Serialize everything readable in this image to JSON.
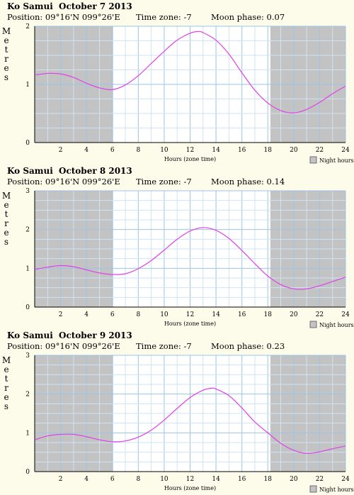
{
  "location": "Ko Samui",
  "night_label": "Night hours",
  "colors": {
    "background": "#fdfbe9",
    "night": "#c3c3c3",
    "grid_minor": "#cfe3f4",
    "grid_major": "#9ac4e8",
    "curve": "#e040e8",
    "axis": "#000000"
  },
  "chart_data": [
    {
      "type": "line",
      "title": "October 7 2013",
      "position": "Position: 09°16'N 099°26'E",
      "timezone": "Time zone: -7",
      "moon": "Moon phase: 0.07",
      "ylabel": "Metres",
      "xlabel": "Hours (zone time)",
      "xlim": [
        0,
        24
      ],
      "ylim": [
        0,
        2
      ],
      "xticks": [
        "2",
        "4",
        "6",
        "8",
        "10",
        "12",
        "14",
        "16",
        "18",
        "20",
        "22",
        "24"
      ],
      "yticks": [
        "0",
        "1",
        "2"
      ],
      "night": [
        [
          0,
          6.05
        ],
        [
          18.2,
          24
        ]
      ],
      "legend": "Night hours",
      "x": [
        0,
        1,
        2,
        3,
        4,
        5,
        6,
        7,
        8,
        9,
        10,
        11,
        12,
        12.6,
        13,
        14,
        15,
        16,
        17,
        18,
        19,
        20,
        21,
        22,
        23,
        24
      ],
      "y": [
        1.16,
        1.19,
        1.18,
        1.12,
        1.02,
        0.94,
        0.91,
        0.99,
        1.15,
        1.36,
        1.57,
        1.76,
        1.88,
        1.91,
        1.89,
        1.76,
        1.52,
        1.2,
        0.9,
        0.68,
        0.55,
        0.51,
        0.57,
        0.69,
        0.84,
        0.97
      ]
    },
    {
      "type": "line",
      "title": "October 8 2013",
      "position": "Position: 09°16'N 099°26'E",
      "timezone": "Time zone: -7",
      "moon": "Moon phase: 0.14",
      "ylabel": "Metres",
      "xlabel": "Hours (zone time)",
      "xlim": [
        0,
        24
      ],
      "ylim": [
        0,
        3
      ],
      "xticks": [
        "2",
        "4",
        "6",
        "8",
        "10",
        "12",
        "14",
        "16",
        "18",
        "20",
        "22",
        "24"
      ],
      "yticks": [
        "0",
        "1",
        "2",
        "3"
      ],
      "night": [
        [
          0,
          6.05
        ],
        [
          18.2,
          24
        ]
      ],
      "legend": "Night hours",
      "x": [
        0,
        1,
        2,
        3,
        4,
        5,
        6,
        7,
        8,
        9,
        10,
        11,
        12,
        13,
        14,
        15,
        16,
        17,
        18,
        19,
        20,
        21,
        22,
        23,
        24
      ],
      "y": [
        0.97,
        1.03,
        1.07,
        1.04,
        0.96,
        0.88,
        0.84,
        0.86,
        0.99,
        1.2,
        1.47,
        1.75,
        1.96,
        2.05,
        1.98,
        1.77,
        1.46,
        1.12,
        0.8,
        0.58,
        0.47,
        0.47,
        0.55,
        0.66,
        0.77
      ]
    },
    {
      "type": "line",
      "title": "October 9 2013",
      "position": "Position: 09°16'N 099°26'E",
      "timezone": "Time zone: -7",
      "moon": "Moon phase: 0.23",
      "ylabel": "Metres",
      "xlabel": "Hours (zone time)",
      "xlim": [
        0,
        24
      ],
      "ylim": [
        0,
        3
      ],
      "xticks": [
        "2",
        "4",
        "6",
        "8",
        "10",
        "12",
        "14",
        "16",
        "18",
        "20",
        "22",
        "24"
      ],
      "yticks": [
        "0",
        "1",
        "2",
        "3"
      ],
      "night": [
        [
          0,
          6.05
        ],
        [
          18.2,
          24
        ]
      ],
      "legend": "Night hours",
      "x": [
        0,
        1,
        2,
        3,
        4,
        5,
        6,
        7,
        8,
        9,
        10,
        11,
        12,
        13,
        13.6,
        14,
        15,
        16,
        17,
        18,
        19,
        20,
        21,
        22,
        23,
        24
      ],
      "y": [
        0.82,
        0.92,
        0.96,
        0.96,
        0.9,
        0.82,
        0.77,
        0.79,
        0.89,
        1.07,
        1.33,
        1.63,
        1.91,
        2.1,
        2.15,
        2.13,
        1.96,
        1.64,
        1.28,
        1.0,
        0.73,
        0.55,
        0.47,
        0.51,
        0.59,
        0.66
      ]
    }
  ]
}
